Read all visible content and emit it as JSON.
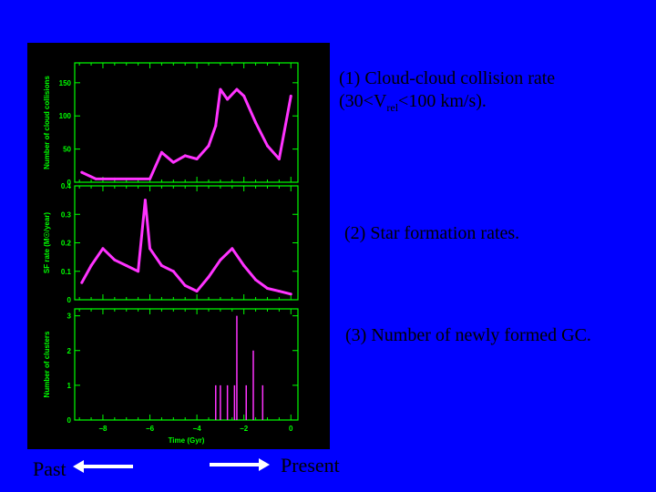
{
  "colors": {
    "background": "#0000ff",
    "panel": "#000000",
    "axis": "#00ff00",
    "data": "#ff33ff"
  },
  "chart_data": [
    {
      "type": "line",
      "panel": "top",
      "ylabel": "Number of cloud collisions",
      "ylim": [
        0,
        180
      ],
      "yticks": [
        "0",
        "50",
        "100",
        "150"
      ],
      "ytick_values": [
        0,
        50,
        100,
        150
      ],
      "x": [
        -8.9,
        -8.3,
        -7.5,
        -6.0,
        -5.5,
        -5.0,
        -4.5,
        -4.0,
        -3.5,
        -3.2,
        -3.0,
        -2.7,
        -2.3,
        -2.0,
        -1.5,
        -1.0,
        -0.5,
        0.0
      ],
      "values": [
        15,
        5,
        5,
        5,
        45,
        30,
        40,
        35,
        55,
        85,
        140,
        125,
        140,
        130,
        90,
        55,
        35,
        130
      ]
    },
    {
      "type": "line",
      "panel": "middle",
      "ylabel": "SF rate (M☉/year)",
      "ylim": [
        0,
        0.4
      ],
      "yticks": [
        "0",
        "0.1",
        "0.2",
        "0.3",
        "0.4"
      ],
      "ytick_values": [
        0,
        0.1,
        0.2,
        0.3,
        0.4
      ],
      "x": [
        -8.9,
        -8.5,
        -8.0,
        -7.5,
        -7.0,
        -6.5,
        -6.2,
        -6.0,
        -5.5,
        -5.0,
        -4.5,
        -4.0,
        -3.5,
        -3.0,
        -2.5,
        -2.0,
        -1.5,
        -1.0,
        -0.5,
        0.0
      ],
      "values": [
        0.06,
        0.12,
        0.18,
        0.14,
        0.12,
        0.1,
        0.35,
        0.18,
        0.12,
        0.1,
        0.05,
        0.03,
        0.08,
        0.14,
        0.18,
        0.12,
        0.07,
        0.04,
        0.03,
        0.02
      ]
    },
    {
      "type": "bar",
      "panel": "bottom",
      "ylabel": "Number of clusters",
      "xlabel": "Time (Gyr)",
      "ylim": [
        0,
        3.2
      ],
      "xlim": [
        -9.2,
        0.3
      ],
      "yticks": [
        "0",
        "1",
        "2",
        "3"
      ],
      "ytick_values": [
        0,
        1,
        2,
        3
      ],
      "xticks": [
        "−8",
        "−6",
        "−4",
        "−2",
        "0"
      ],
      "xtick_values": [
        -8,
        -6,
        -4,
        -2,
        0
      ],
      "x": [
        -3.2,
        -3.0,
        -2.7,
        -2.4,
        -2.3,
        -1.9,
        -1.6,
        -1.2
      ],
      "values": [
        1,
        1,
        1,
        1,
        3,
        1,
        2,
        1
      ]
    }
  ],
  "annotations": {
    "collision": {
      "line1": "(1) Cloud-cloud collision rate",
      "pre": "(30<V",
      "sub": "rel",
      "post": "<100 km/s)."
    },
    "sfr": "(2) Star formation rates.",
    "gc": "(3) Number of newly formed GC."
  },
  "arrows": {
    "past": "Past",
    "present": "Present"
  }
}
